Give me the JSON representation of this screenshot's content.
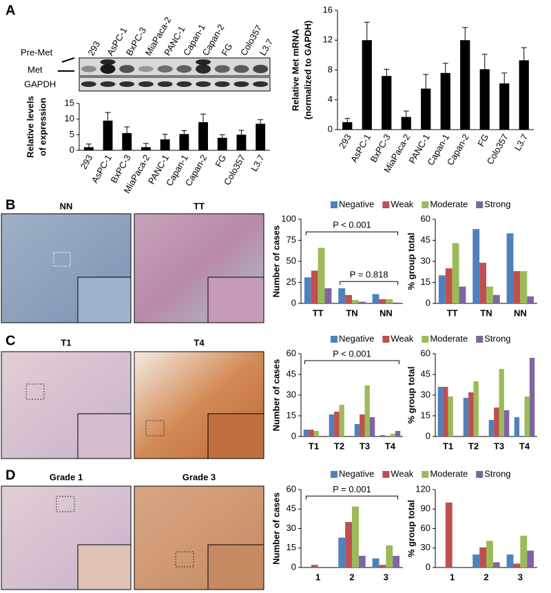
{
  "panels": {
    "a": "A",
    "b": "B",
    "c": "C",
    "d": "D"
  },
  "blot": {
    "pre_met": "Pre-Met",
    "met": "Met",
    "gapdh": "GAPDH"
  },
  "images": {
    "nn": "NN",
    "tt": "TT",
    "t1": "T1",
    "t4": "T4",
    "grade1": "Grade 1",
    "grade3": "Grade 3"
  },
  "chart_data": [
    {
      "type": "bar",
      "y_label": [
        "Relative levels",
        "of expression"
      ],
      "color": "#000000",
      "categories": [
        "293",
        "AsPC-1",
        "BxPC-3",
        "MiaPaca-2",
        "PANC-1",
        "Capan-1",
        "Capan-2",
        "FG",
        "Colo357",
        "L3.7"
      ],
      "values": [
        1,
        9.5,
        5.5,
        1,
        3.5,
        5.2,
        9,
        4,
        5,
        8.5
      ],
      "errors": [
        1,
        2.6,
        2,
        1.2,
        1.6,
        1.1,
        2.6,
        1,
        1.4,
        1.3
      ],
      "ylim": [
        0,
        15
      ],
      "yticks": [
        0,
        5,
        10,
        15
      ]
    },
    {
      "type": "bar",
      "y_label": [
        "Relative Met mRNA",
        "(normalized to GAPDH)"
      ],
      "color": "#000000",
      "categories": [
        "293",
        "AsPC-1",
        "BxPC-3",
        "MiaPaca-2",
        "PANC-1",
        "Capan-1",
        "Capan-2",
        "FG",
        "Colo357",
        "L3.7"
      ],
      "values": [
        1,
        12,
        7.2,
        1.7,
        5.5,
        7.6,
        12,
        8.1,
        6.2,
        9.3
      ],
      "errors": [
        0.5,
        2.4,
        0.9,
        0.8,
        1.9,
        1.3,
        1.7,
        2,
        1.4,
        1.7
      ],
      "ylim": [
        0,
        16
      ],
      "yticks": [
        0,
        4,
        8,
        12,
        16
      ]
    },
    {
      "type": "grouped-bar",
      "y_label": "Number of cases",
      "categories": [
        "TT",
        "TN",
        "NN"
      ],
      "series": [
        {
          "name": "Negative",
          "color": "#4f81bd",
          "values": [
            31,
            18,
            11
          ]
        },
        {
          "name": "Weak",
          "color": "#c0504d",
          "values": [
            39,
            10,
            5
          ]
        },
        {
          "name": "Moderate",
          "color": "#9bbb59",
          "values": [
            66,
            4,
            5
          ]
        },
        {
          "name": "Strong",
          "color": "#8064a2",
          "values": [
            18,
            2,
            1
          ]
        }
      ],
      "ylim": [
        0,
        100
      ],
      "yticks": [
        0,
        25,
        50,
        75,
        100
      ],
      "annotations": [
        "P < 0.001",
        "P = 0.818"
      ]
    },
    {
      "type": "grouped-bar",
      "y_label": "% group total",
      "categories": [
        "TT",
        "TN",
        "NN"
      ],
      "series": [
        {
          "name": "Negative",
          "color": "#4f81bd",
          "values": [
            20,
            53,
            50
          ]
        },
        {
          "name": "Weak",
          "color": "#c0504d",
          "values": [
            25,
            29,
            23
          ]
        },
        {
          "name": "Moderate",
          "color": "#9bbb59",
          "values": [
            43,
            12,
            23
          ]
        },
        {
          "name": "Strong",
          "color": "#8064a2",
          "values": [
            12,
            6,
            5
          ]
        }
      ],
      "ylim": [
        0,
        60
      ],
      "yticks": [
        0,
        15,
        30,
        45,
        60
      ]
    },
    {
      "type": "grouped-bar",
      "y_label": "Number of cases",
      "categories": [
        "T1",
        "T2",
        "T3",
        "T4"
      ],
      "series": [
        {
          "name": "Negative",
          "color": "#4f81bd",
          "values": [
            5,
            16,
            9,
            1
          ]
        },
        {
          "name": "Weak",
          "color": "#c0504d",
          "values": [
            5,
            18,
            16,
            0
          ]
        },
        {
          "name": "Moderate",
          "color": "#9bbb59",
          "values": [
            4,
            23,
            37,
            2
          ]
        },
        {
          "name": "Strong",
          "color": "#8064a2",
          "values": [
            0,
            0,
            14,
            4
          ]
        }
      ],
      "ylim": [
        0,
        60
      ],
      "yticks": [
        0,
        15,
        30,
        45,
        60
      ],
      "annotations": [
        "P < 0.001"
      ]
    },
    {
      "type": "grouped-bar",
      "y_label": "% group total",
      "categories": [
        "T1",
        "T2",
        "T3",
        "T4"
      ],
      "series": [
        {
          "name": "Negative",
          "color": "#4f81bd",
          "values": [
            36,
            28,
            12,
            14
          ]
        },
        {
          "name": "Weak",
          "color": "#c0504d",
          "values": [
            36,
            32,
            21,
            0
          ]
        },
        {
          "name": "Moderate",
          "color": "#9bbb59",
          "values": [
            29,
            40,
            49,
            29
          ]
        },
        {
          "name": "Strong",
          "color": "#8064a2",
          "values": [
            0,
            0,
            19,
            57
          ]
        }
      ],
      "ylim": [
        0,
        60
      ],
      "yticks": [
        0,
        15,
        30,
        45,
        60
      ]
    },
    {
      "type": "grouped-bar",
      "y_label": "Number of cases",
      "categories": [
        "1",
        "2",
        "3"
      ],
      "series": [
        {
          "name": "Negative",
          "color": "#4f81bd",
          "values": [
            0,
            23,
            7
          ]
        },
        {
          "name": "Weak",
          "color": "#c0504d",
          "values": [
            2,
            35,
            2
          ]
        },
        {
          "name": "Moderate",
          "color": "#9bbb59",
          "values": [
            0,
            47,
            17
          ]
        },
        {
          "name": "Strong",
          "color": "#8064a2",
          "values": [
            0,
            9,
            9
          ]
        }
      ],
      "ylim": [
        0,
        60
      ],
      "yticks": [
        0,
        15,
        30,
        45,
        60
      ],
      "annotations": [
        "P = 0.001"
      ]
    },
    {
      "type": "grouped-bar",
      "y_label": "% group total",
      "categories": [
        "1",
        "2",
        "3"
      ],
      "series": [
        {
          "name": "Negative",
          "color": "#4f81bd",
          "values": [
            0,
            20,
            20
          ]
        },
        {
          "name": "Weak",
          "color": "#c0504d",
          "values": [
            100,
            31,
            6
          ]
        },
        {
          "name": "Moderate",
          "color": "#9bbb59",
          "values": [
            0,
            41,
            49
          ]
        },
        {
          "name": "Strong",
          "color": "#8064a2",
          "values": [
            0,
            8,
            26
          ]
        }
      ],
      "ylim": [
        0,
        120
      ],
      "yticks": [
        0,
        30,
        60,
        90,
        120
      ]
    }
  ]
}
